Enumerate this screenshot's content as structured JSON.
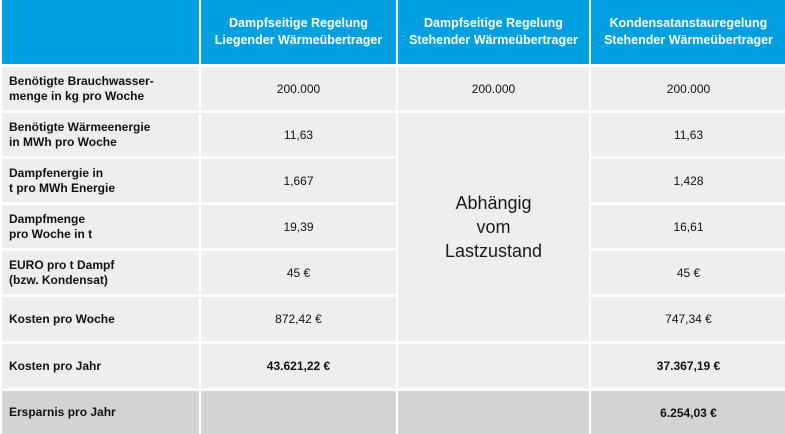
{
  "header": {
    "col1_line1": "Dampfseitige Regelung",
    "col1_line2": "Liegender Wärmeübertrager",
    "col2_line1": "Dampfseitige Regelung",
    "col2_line2": "Stehender Wärmeübertrager",
    "col3_line1": "Kondensatanstauregelung",
    "col3_line2": "Stehender Wärmeübertrager"
  },
  "rows": [
    {
      "label_line1": "Benötigte Brauchwasser-",
      "label_line2": "menge in kg pro Woche",
      "c1": "200.000",
      "c2": "200.000",
      "c3": "200.000"
    },
    {
      "label_line1": "Benötigte Wärmeenergie",
      "label_line2": "in MWh pro Woche",
      "c1": "11,63",
      "c3": "11,63"
    },
    {
      "label_line1": "Dampfenergie in",
      "label_line2": "t pro MWh Energie",
      "c1": "1,667",
      "c3": "1,428"
    },
    {
      "label_line1": "Dampfmenge",
      "label_line2": "pro Woche in t",
      "c1": "19,39",
      "c3": "16,61"
    },
    {
      "label_line1": "EURO pro t Dampf",
      "label_line2": "(bzw. Kondensat)",
      "c1": "45 €",
      "c3": "45 €"
    },
    {
      "label_line1": "Kosten pro Woche",
      "c1": "872,42 €",
      "c3": "747,34 €"
    },
    {
      "label_line1": "Kosten pro Jahr",
      "c1": "43.621,22 €",
      "c3": "37.367,19 €"
    },
    {
      "label_line1": "Ersparnis pro Jahr",
      "c3": "6.254,03 €"
    }
  ],
  "merged": {
    "line1": "Abhängig",
    "line2": "vom",
    "line3": "Lastzustand"
  },
  "colors": {
    "header_bg": "#009fdf",
    "cell_bg": "#eeeeee",
    "last_row_bg": "#d3d3d4"
  }
}
